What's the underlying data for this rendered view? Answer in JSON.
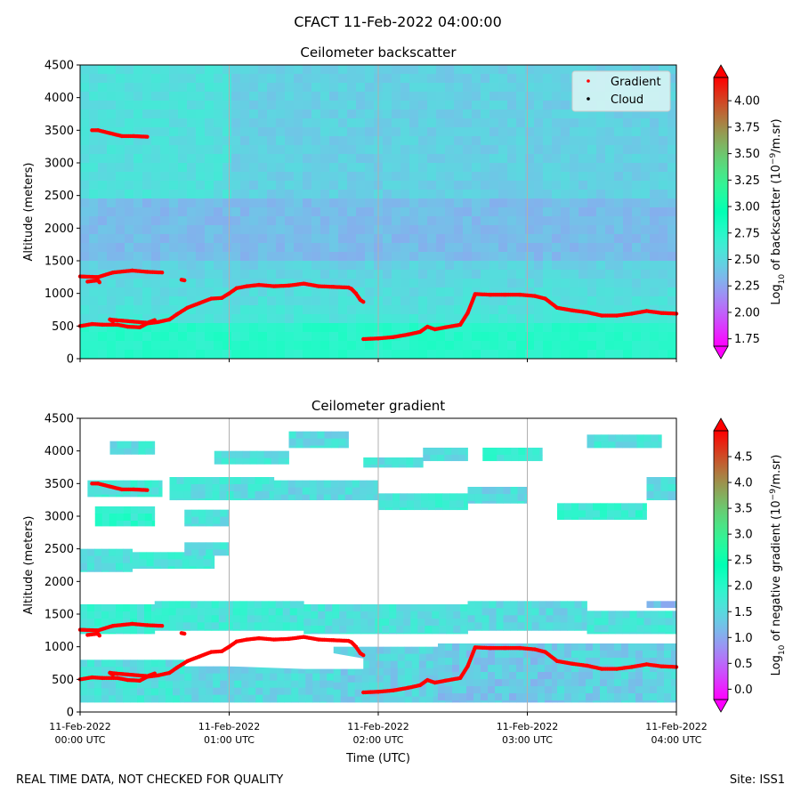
{
  "figure": {
    "title": "CFACT 11-Feb-2022 04:00:00",
    "footer_left": "REAL TIME DATA, NOT CHECKED FOR QUALITY",
    "footer_right": "Site: ISS1"
  },
  "colors": {
    "gradient_marker": "#ff0000",
    "cloud_marker": "#000000",
    "colormap": "rainbow",
    "legend_bg": "#d7f4f4",
    "grid": "#b0b0b0"
  },
  "chart_data": [
    {
      "type": "heatmap",
      "title": "Ceilometer backscatter",
      "ylabel": "Altitude (meters)",
      "ylim": [
        0,
        4500
      ],
      "yticks": [
        0,
        500,
        1000,
        1500,
        2000,
        2500,
        3000,
        3500,
        4000,
        4500
      ],
      "xlim_hours": [
        0,
        4
      ],
      "colorbar": {
        "label_parts": [
          "Log",
          "10",
          " of backscatter (10",
          "−9",
          "/m.sr)"
        ],
        "range": [
          1.68,
          4.22
        ],
        "ticks": [
          "1.75",
          "2.00",
          "2.25",
          "2.50",
          "2.75",
          "3.00",
          "3.25",
          "3.50",
          "3.75",
          "4.00"
        ],
        "extend": "both"
      },
      "legend": {
        "placement": "upper right",
        "entries": [
          "Gradient",
          "Cloud"
        ]
      },
      "field_description_values": {
        "surface_layer_0_500m": 2.75,
        "mid_500_1500m": 2.6,
        "upper_1500_2500m": 2.35,
        "top_2500_4500m": 2.45
      }
    },
    {
      "type": "heatmap",
      "title": "Ceilometer gradient",
      "ylabel": "Altitude (meters)",
      "xlabel": "Time (UTC)",
      "ylim": [
        0,
        4500
      ],
      "yticks": [
        0,
        500,
        1000,
        1500,
        2000,
        2500,
        3000,
        3500,
        4000,
        4500
      ],
      "xlim_hours": [
        0,
        4
      ],
      "xticks": [
        {
          "hour": 0,
          "line1": "11-Feb-2022",
          "line2": "00:00 UTC"
        },
        {
          "hour": 1,
          "line1": "11-Feb-2022",
          "line2": "01:00 UTC"
        },
        {
          "hour": 2,
          "line1": "11-Feb-2022",
          "line2": "02:00 UTC"
        },
        {
          "hour": 3,
          "line1": "11-Feb-2022",
          "line2": "03:00 UTC"
        },
        {
          "hour": 4,
          "line1": "11-Feb-2022",
          "line2": "04:00 UTC"
        }
      ],
      "colorbar": {
        "label_parts": [
          "Log",
          "10",
          " of negative gradient (10",
          "−9",
          "/m.sr)"
        ],
        "range": [
          -0.2,
          5.0
        ],
        "ticks": [
          "0.0",
          "0.5",
          "1.0",
          "1.5",
          "2.0",
          "2.5",
          "3.0",
          "3.5",
          "4.0",
          "4.5"
        ],
        "extend": "both"
      },
      "blobs_hours_altitude": [
        [
          0.0,
          0.5,
          1200,
          1650,
          1.8
        ],
        [
          0.5,
          1.5,
          1250,
          1700,
          1.7
        ],
        [
          1.5,
          2.6,
          1200,
          1650,
          1.6
        ],
        [
          2.6,
          3.4,
          1250,
          1700,
          1.5
        ],
        [
          3.4,
          4.0,
          1200,
          1550,
          1.6
        ],
        [
          0.0,
          0.7,
          150,
          800,
          1.6
        ],
        [
          0.7,
          1.7,
          150,
          700,
          1.5
        ],
        [
          1.7,
          2.4,
          150,
          1000,
          1.4
        ],
        [
          2.4,
          3.2,
          150,
          1050,
          1.3
        ],
        [
          3.2,
          4.0,
          150,
          1050,
          1.4
        ],
        [
          0.0,
          0.35,
          2150,
          2500,
          1.6
        ],
        [
          0.35,
          0.9,
          2200,
          2450,
          1.7
        ],
        [
          0.1,
          0.5,
          2850,
          3150,
          1.9
        ],
        [
          0.7,
          1.0,
          2850,
          3100,
          1.6
        ],
        [
          0.05,
          0.55,
          3300,
          3550,
          1.7
        ],
        [
          0.6,
          1.3,
          3250,
          3600,
          1.6
        ],
        [
          1.3,
          2.0,
          3250,
          3550,
          1.5
        ],
        [
          2.0,
          2.6,
          3100,
          3350,
          1.7
        ],
        [
          2.6,
          3.0,
          3200,
          3450,
          1.5
        ],
        [
          3.2,
          3.8,
          2950,
          3200,
          1.8
        ],
        [
          3.8,
          4.0,
          3250,
          3600,
          1.5
        ],
        [
          0.2,
          0.5,
          3950,
          4150,
          1.6
        ],
        [
          0.9,
          1.4,
          3800,
          4000,
          1.6
        ],
        [
          1.4,
          1.8,
          4050,
          4300,
          1.5
        ],
        [
          1.9,
          2.3,
          3750,
          3900,
          1.6
        ],
        [
          2.3,
          2.6,
          3850,
          4050,
          1.5
        ],
        [
          2.7,
          3.1,
          3850,
          4050,
          1.8
        ],
        [
          3.4,
          3.9,
          4050,
          4250,
          1.6
        ],
        [
          3.8,
          4.0,
          1600,
          1700,
          1.2
        ],
        [
          0.7,
          1.0,
          2400,
          2600,
          1.6
        ]
      ]
    }
  ],
  "gradient_series": [
    {
      "name": "boundary_layer_1",
      "points": [
        [
          0.0,
          500
        ],
        [
          0.08,
          530
        ],
        [
          0.15,
          520
        ],
        [
          0.25,
          520
        ],
        [
          0.32,
          490
        ],
        [
          0.4,
          480
        ],
        [
          0.45,
          540
        ],
        [
          0.52,
          560
        ],
        [
          0.6,
          600
        ],
        [
          0.65,
          680
        ],
        [
          0.72,
          780
        ],
        [
          0.8,
          850
        ],
        [
          0.88,
          920
        ],
        [
          0.95,
          930
        ],
        [
          1.0,
          1000
        ],
        [
          1.05,
          1080
        ],
        [
          1.12,
          1110
        ],
        [
          1.2,
          1130
        ],
        [
          1.3,
          1110
        ],
        [
          1.4,
          1120
        ],
        [
          1.5,
          1150
        ],
        [
          1.6,
          1110
        ],
        [
          1.7,
          1100
        ],
        [
          1.8,
          1090
        ],
        [
          1.82,
          1070
        ],
        [
          1.85,
          1000
        ],
        [
          1.88,
          900
        ],
        [
          1.9,
          870
        ]
      ]
    },
    {
      "name": "boundary_layer_2",
      "points": [
        [
          1.9,
          300
        ],
        [
          2.0,
          310
        ],
        [
          2.1,
          330
        ],
        [
          2.2,
          370
        ],
        [
          2.28,
          410
        ],
        [
          2.33,
          490
        ],
        [
          2.38,
          450
        ],
        [
          2.45,
          480
        ],
        [
          2.55,
          520
        ],
        [
          2.6,
          700
        ],
        [
          2.65,
          990
        ],
        [
          2.75,
          980
        ],
        [
          2.85,
          980
        ],
        [
          2.95,
          980
        ],
        [
          3.05,
          960
        ],
        [
          3.12,
          920
        ],
        [
          3.2,
          780
        ],
        [
          3.3,
          740
        ],
        [
          3.4,
          710
        ],
        [
          3.5,
          660
        ],
        [
          3.6,
          660
        ],
        [
          3.7,
          690
        ],
        [
          3.8,
          730
        ],
        [
          3.9,
          700
        ],
        [
          4.0,
          690
        ]
      ]
    },
    {
      "name": "upper_residual",
      "points": [
        [
          0.0,
          1260
        ],
        [
          0.12,
          1250
        ],
        [
          0.22,
          1320
        ],
        [
          0.35,
          1350
        ],
        [
          0.45,
          1330
        ],
        [
          0.55,
          1320
        ]
      ]
    },
    {
      "name": "fragment_a",
      "points": [
        [
          0.5,
          590
        ],
        [
          0.45,
          550
        ],
        [
          0.24,
          590
        ],
        [
          0.2,
          600
        ],
        [
          0.22,
          570
        ]
      ]
    },
    {
      "name": "fragment_b",
      "points": [
        [
          0.05,
          1180
        ],
        [
          0.12,
          1200
        ],
        [
          0.13,
          1170
        ]
      ]
    },
    {
      "name": "fragment_c",
      "points": [
        [
          0.68,
          1210
        ],
        [
          0.7,
          1200
        ]
      ]
    },
    {
      "name": "fragment_d",
      "points": [
        [
          0.08,
          3500
        ],
        [
          0.12,
          3500
        ],
        [
          0.28,
          3410
        ],
        [
          0.36,
          3410
        ],
        [
          0.45,
          3400
        ]
      ]
    }
  ]
}
